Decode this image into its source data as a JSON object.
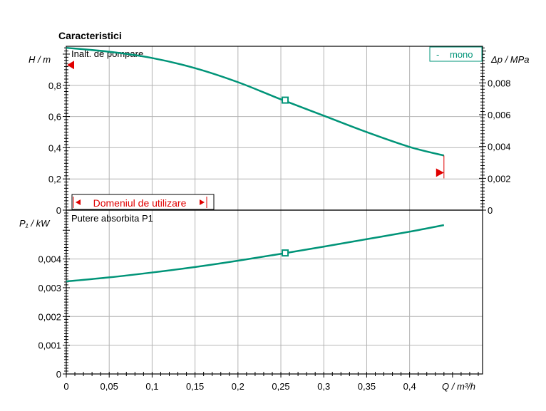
{
  "title": "Caracteristici",
  "chart_data": [
    {
      "type": "line",
      "panel": "top",
      "panel_label": "Inalt. de pompare",
      "ylabel_left": "H / m",
      "ylabel_right": "Δp / MPa",
      "ylim": [
        0,
        1.05
      ],
      "ylim_right": [
        0,
        0.0103
      ],
      "yticks": [
        "0",
        "0,2",
        "0,4",
        "0,6",
        "0,8"
      ],
      "yticks_right": [
        "0",
        "0,002",
        "0,004",
        "0,006",
        "0,008"
      ],
      "legend": {
        "label": "mono",
        "prefix": "-",
        "position": "top-right"
      },
      "series": [
        {
          "name": "mono",
          "color": "#009478",
          "x": [
            0,
            0.05,
            0.1,
            0.15,
            0.2,
            0.25,
            0.3,
            0.35,
            0.4,
            0.44
          ],
          "y": [
            1.04,
            1.015,
            0.975,
            0.91,
            0.82,
            0.71,
            0.605,
            0.5,
            0.405,
            0.35
          ]
        }
      ],
      "operating_point": {
        "x": 0.255,
        "y": 0.705
      },
      "markers": [
        {
          "side": "left",
          "y": 0.93
        },
        {
          "side": "right",
          "x": 0.44,
          "y": 0.24
        }
      ],
      "range_label": "Domeniul de utilizare"
    },
    {
      "type": "line",
      "panel": "bottom",
      "panel_label": "Putere absorbita P1",
      "ylabel": "P₁ / kW",
      "ylim": [
        0,
        0.0057
      ],
      "yticks": [
        "0",
        "0,001",
        "0,002",
        "0,003",
        "0,004"
      ],
      "xlabel": "Q / m³/h",
      "xlim": [
        0,
        0.485
      ],
      "xticks": [
        "0",
        "0,05",
        "0,1",
        "0,15",
        "0,2",
        "0,25",
        "0,3",
        "0,35",
        "0,4"
      ],
      "series": [
        {
          "name": "mono",
          "color": "#009478",
          "x": [
            0,
            0.05,
            0.1,
            0.15,
            0.2,
            0.25,
            0.3,
            0.35,
            0.4,
            0.44
          ],
          "y": [
            0.00322,
            0.00336,
            0.00353,
            0.00372,
            0.00394,
            0.00418,
            0.00443,
            0.00469,
            0.00495,
            0.00518
          ]
        }
      ],
      "operating_point": {
        "x": 0.255,
        "y": 0.00421
      }
    }
  ]
}
